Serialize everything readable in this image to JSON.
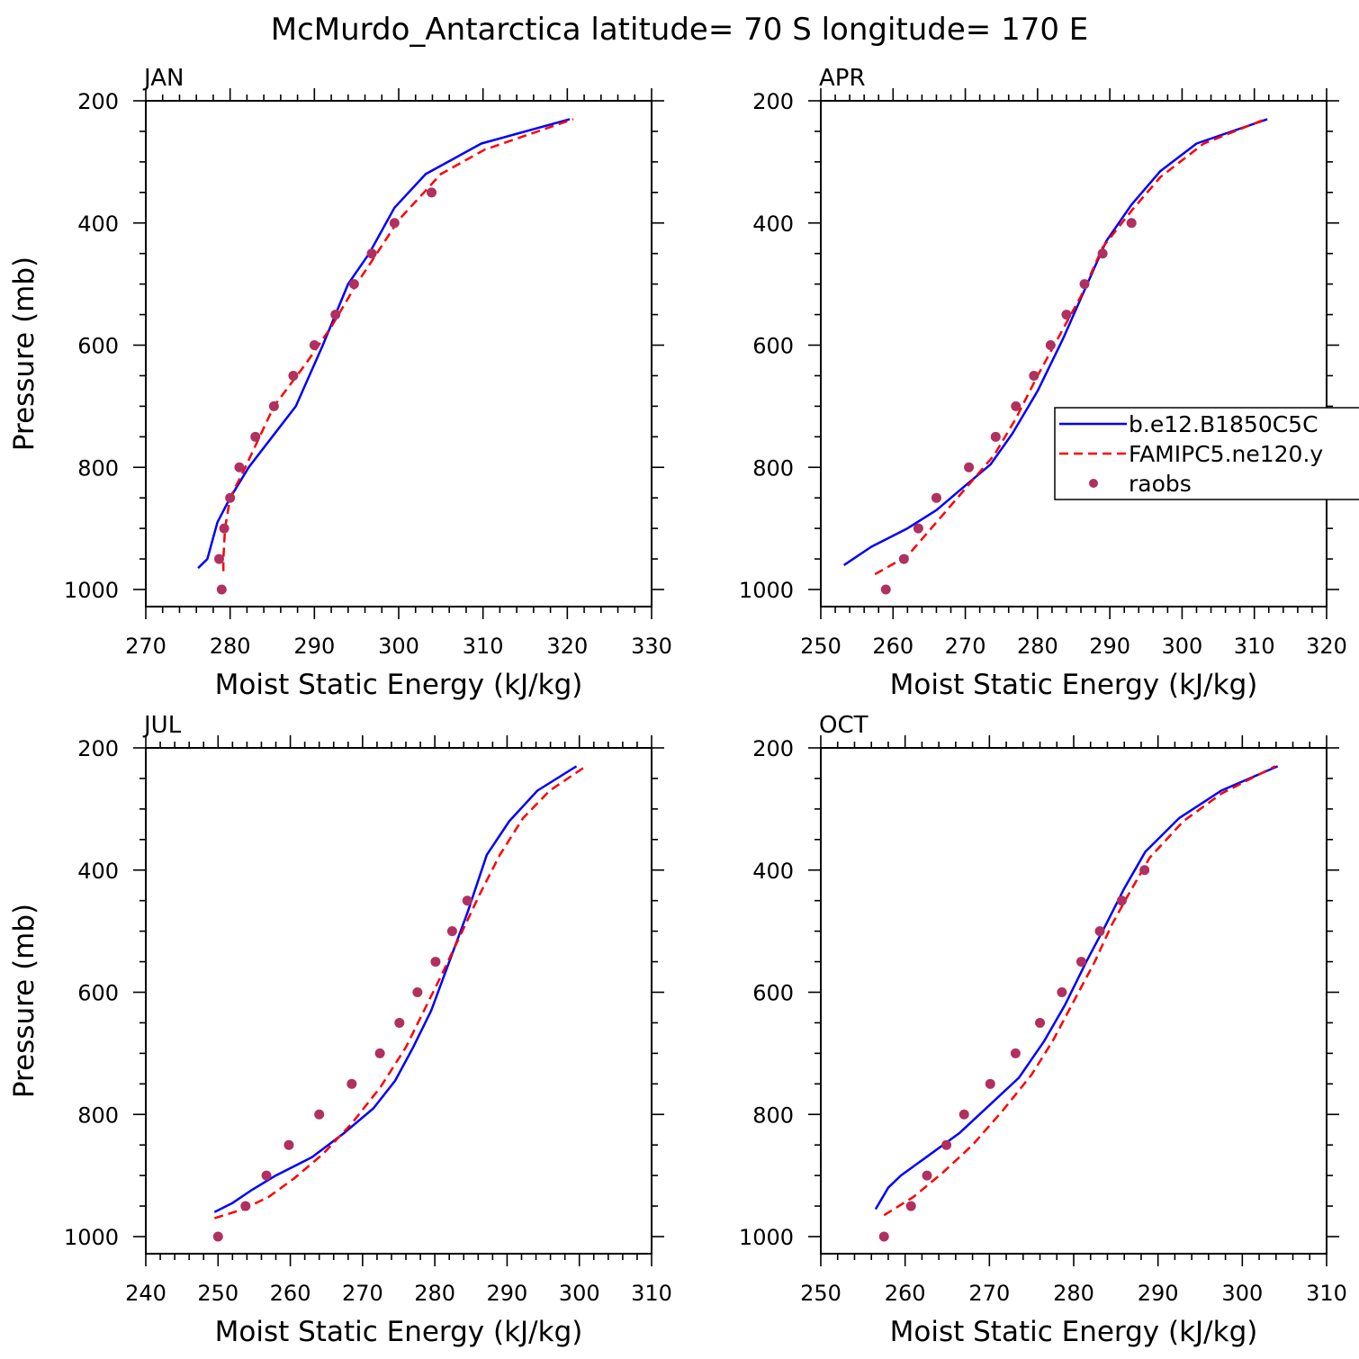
{
  "title": "McMurdo_Antarctica  latitude= 70 S longitude= 170 E",
  "legend": {
    "entries": [
      {
        "label": "b.e12.B1850C5C",
        "style": "solid",
        "color": "#0000ff"
      },
      {
        "label": "FAMIPC5.ne120.y",
        "style": "dashed",
        "color": "#ff0000"
      },
      {
        "label": "raobs",
        "style": "dots",
        "color": "#b03060"
      }
    ],
    "placement": "APR panel, right, clipped at figure edge"
  },
  "colors": {
    "model": "#0000ff",
    "famip": "#ff0000",
    "raobs": "#b03060"
  },
  "chart_data": [
    {
      "type": "line",
      "panel": "JAN",
      "xlabel": "Moist Static Energy (kJ/kg)",
      "ylabel": "Pressure (mb)",
      "xlim": [
        270,
        330
      ],
      "ylim": [
        1000,
        200
      ],
      "xticks": [
        270,
        280,
        290,
        300,
        310,
        320,
        330
      ],
      "yticks": [
        200,
        400,
        600,
        800,
        1000
      ],
      "series": [
        {
          "name": "b.e12.B1850C5C",
          "style": "solid",
          "x": [
            276.2,
            277.3,
            278.5,
            280.0,
            282.2,
            285.0,
            287.8,
            291.0,
            294.0,
            296.5,
            299.5,
            303.2,
            309.8,
            320.3
          ],
          "y": [
            965,
            950,
            890,
            850,
            800,
            750,
            700,
            600,
            500,
            450,
            375,
            320,
            270,
            230
          ]
        },
        {
          "name": "FAMIPC5.ne120.y",
          "style": "dashed",
          "x": [
            279.2,
            279.2,
            279.4,
            280.0,
            281.8,
            285.2,
            289.0,
            292.0,
            295.0,
            297.4,
            300.0,
            305.0,
            310.2,
            320.7
          ],
          "y": [
            970,
            950,
            900,
            850,
            800,
            700,
            630,
            570,
            500,
            450,
            395,
            320,
            280,
            230
          ]
        },
        {
          "name": "raobs",
          "style": "dots",
          "x": [
            279.0,
            278.7,
            279.3,
            280.0,
            281.1,
            283.0,
            285.2,
            287.5,
            290.0,
            292.5,
            294.7,
            296.8,
            299.5,
            303.9
          ],
          "y": [
            1000,
            950,
            900,
            850,
            800,
            750,
            700,
            650,
            600,
            550,
            500,
            450,
            400,
            350
          ]
        }
      ]
    },
    {
      "type": "line",
      "panel": "APR",
      "xlabel": "Moist Static Energy (kJ/kg)",
      "ylabel": "",
      "xlim": [
        250,
        320
      ],
      "ylim": [
        1000,
        200
      ],
      "xticks": [
        250,
        260,
        270,
        280,
        290,
        300,
        310,
        320
      ],
      "yticks": [
        200,
        400,
        600,
        800,
        1000
      ],
      "series": [
        {
          "name": "b.e12.B1850C5C",
          "style": "solid",
          "x": [
            253.2,
            257.0,
            262.0,
            266.0,
            270.0,
            273.5,
            276.5,
            280.0,
            283.5,
            286.5,
            289.5,
            293.0,
            297.0,
            302.0,
            311.8
          ],
          "y": [
            960,
            930,
            900,
            870,
            830,
            795,
            745,
            675,
            590,
            510,
            430,
            370,
            315,
            270,
            230
          ]
        },
        {
          "name": "FAMIPC5.ne120.y",
          "style": "dashed",
          "x": [
            257.5,
            262.0,
            266.0,
            270.0,
            274.0,
            277.0,
            280.0,
            283.0,
            286.0,
            289.0,
            293.0,
            297.0,
            303.0,
            311.5
          ],
          "y": [
            975,
            945,
            890,
            835,
            780,
            720,
            650,
            585,
            520,
            440,
            380,
            325,
            270,
            230
          ]
        },
        {
          "name": "raobs",
          "style": "dots",
          "x": [
            259.0,
            261.5,
            263.5,
            266.0,
            270.5,
            274.2,
            277.0,
            279.5,
            281.8,
            284.0,
            286.5,
            289.0,
            293.0
          ],
          "y": [
            1000,
            950,
            900,
            850,
            800,
            750,
            700,
            650,
            600,
            550,
            500,
            450,
            400
          ]
        }
      ]
    },
    {
      "type": "line",
      "panel": "JUL",
      "xlabel": "Moist Static Energy (kJ/kg)",
      "ylabel": "Pressure (mb)",
      "xlim": [
        240,
        310
      ],
      "ylim": [
        1000,
        200
      ],
      "xticks": [
        240,
        250,
        260,
        270,
        280,
        290,
        300,
        310
      ],
      "yticks": [
        200,
        400,
        600,
        800,
        1000
      ],
      "series": [
        {
          "name": "b.e12.B1850C5C",
          "style": "solid",
          "x": [
            249.5,
            252.0,
            254.5,
            258.0,
            263.0,
            267.5,
            271.5,
            274.5,
            277.0,
            279.5,
            282.0,
            284.5,
            287.2,
            290.3,
            294.2,
            299.6
          ],
          "y": [
            960,
            945,
            925,
            900,
            870,
            830,
            790,
            745,
            690,
            630,
            550,
            470,
            375,
            320,
            270,
            230
          ]
        },
        {
          "name": "FAMIPC5.ne120.y",
          "style": "dashed",
          "x": [
            249.5,
            253.5,
            257.0,
            260.5,
            264.5,
            268.5,
            272.5,
            276.0,
            278.5,
            281.0,
            283.8,
            286.2,
            289.0,
            292.2,
            295.9,
            300.9
          ],
          "y": [
            970,
            955,
            935,
            905,
            865,
            815,
            755,
            690,
            630,
            570,
            500,
            440,
            375,
            315,
            270,
            230
          ]
        },
        {
          "name": "raobs",
          "style": "dots",
          "x": [
            250.0,
            253.8,
            256.7,
            259.8,
            264.0,
            268.5,
            272.4,
            275.1,
            277.6,
            280.1,
            282.4,
            284.5
          ],
          "y": [
            1000,
            950,
            900,
            850,
            800,
            750,
            700,
            650,
            600,
            550,
            500,
            450
          ]
        }
      ]
    },
    {
      "type": "line",
      "panel": "OCT",
      "xlabel": "Moist Static Energy (kJ/kg)",
      "ylabel": "",
      "xlim": [
        250,
        310
      ],
      "ylim": [
        1000,
        200
      ],
      "xticks": [
        250,
        260,
        270,
        280,
        290,
        300,
        310
      ],
      "yticks": [
        200,
        400,
        600,
        800,
        1000
      ],
      "series": [
        {
          "name": "b.e12.B1850C5C",
          "style": "solid",
          "x": [
            256.5,
            258.0,
            259.5,
            262.5,
            266.5,
            270.0,
            273.5,
            276.5,
            279.0,
            281.5,
            283.8,
            286.0,
            288.5,
            292.5,
            297.5,
            304.2
          ],
          "y": [
            955,
            920,
            900,
            870,
            830,
            785,
            740,
            680,
            620,
            550,
            490,
            430,
            370,
            315,
            270,
            230
          ]
        },
        {
          "name": "FAMIPC5.ne120.y",
          "style": "dashed",
          "x": [
            257.5,
            261.0,
            264.5,
            268.0,
            271.5,
            275.0,
            277.5,
            280.0,
            282.5,
            284.5,
            286.5,
            289.0,
            293.0,
            297.5,
            303.9
          ],
          "y": [
            965,
            935,
            895,
            850,
            795,
            735,
            680,
            615,
            550,
            490,
            440,
            380,
            320,
            275,
            230
          ]
        },
        {
          "name": "raobs",
          "style": "dots",
          "x": [
            257.5,
            260.7,
            262.6,
            264.9,
            267.0,
            270.1,
            273.1,
            276.0,
            278.6,
            280.9,
            283.1,
            285.7,
            288.4
          ],
          "y": [
            1000,
            950,
            900,
            850,
            800,
            750,
            700,
            650,
            600,
            550,
            500,
            450,
            400
          ]
        }
      ]
    }
  ]
}
